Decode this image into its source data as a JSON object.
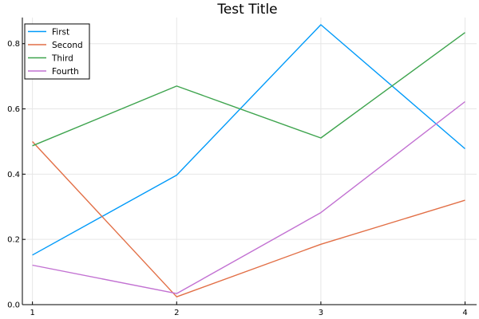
{
  "chart_data": {
    "type": "line",
    "title": "Test Title",
    "xlabel": "",
    "ylabel": "",
    "x": [
      1,
      2,
      3,
      4
    ],
    "xlim": [
      0.93,
      4.08
    ],
    "ylim": [
      0,
      0.88
    ],
    "xticks": [
      1,
      2,
      3,
      4
    ],
    "yticks": [
      0.0,
      0.2,
      0.4,
      0.6,
      0.8
    ],
    "ytick_labels": [
      "0.0",
      "0.2",
      "0.4",
      "0.6",
      "0.8"
    ],
    "grid": true,
    "legend_position": "top-left",
    "series": [
      {
        "name": "First",
        "color": "#009af9",
        "values": [
          0.152,
          0.397,
          0.858,
          0.478
        ]
      },
      {
        "name": "Second",
        "color": "#e26f46",
        "values": [
          0.5,
          0.024,
          0.185,
          0.32
        ]
      },
      {
        "name": "Third",
        "color": "#3ea44e",
        "values": [
          0.487,
          0.67,
          0.511,
          0.834
        ]
      },
      {
        "name": "Fourth",
        "color": "#c271d2",
        "values": [
          0.121,
          0.034,
          0.282,
          0.622
        ]
      }
    ]
  }
}
